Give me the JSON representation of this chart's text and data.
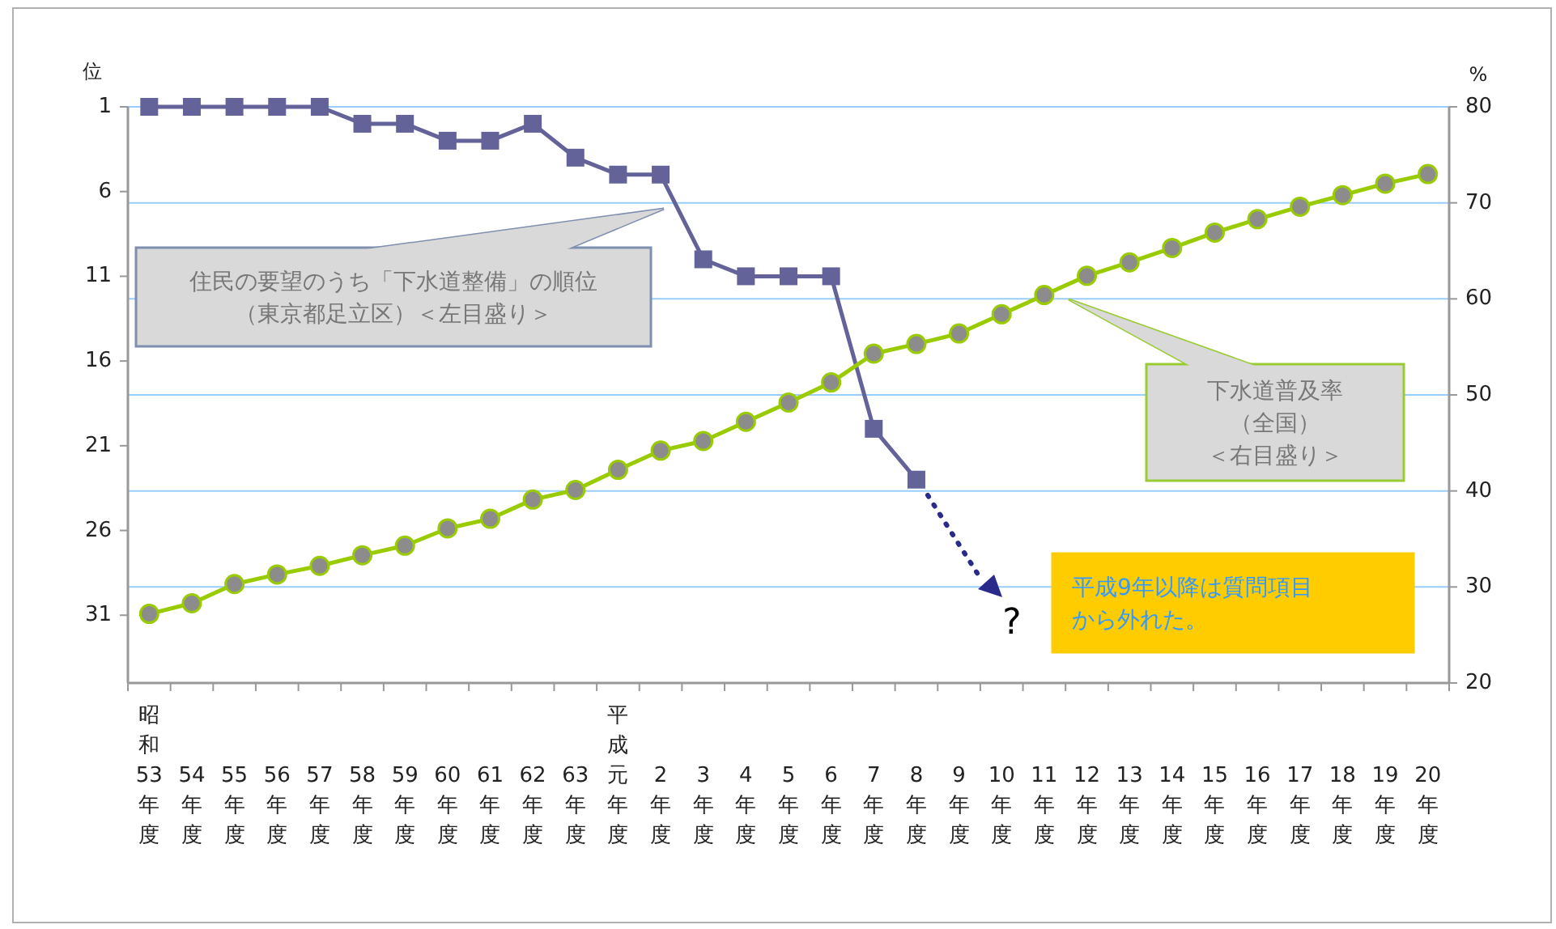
{
  "chart_data": {
    "type": "line",
    "ylabel": "位",
    "y2label": "%",
    "categories": [
      "昭和53年度",
      "54年度",
      "55年度",
      "56年度",
      "57年度",
      "58年度",
      "59年度",
      "60年度",
      "61年度",
      "62年度",
      "63年度",
      "平成元年度",
      "2年度",
      "3年度",
      "4年度",
      "5年度",
      "6年度",
      "7年度",
      "8年度",
      "9年度",
      "10年度",
      "11年度",
      "12年度",
      "13年度",
      "14年度",
      "15年度",
      "16年度",
      "17年度",
      "18年度",
      "19年度",
      "20年度"
    ],
    "series": [
      {
        "color": "#63639a",
        "marker": "square",
        "axis": "y",
        "values": [
          1,
          1,
          1,
          1,
          1,
          2,
          2,
          3,
          3,
          2,
          4,
          5,
          5,
          10,
          11,
          11,
          11,
          20,
          23,
          null,
          null,
          null,
          null,
          null,
          null,
          null,
          null,
          null,
          null,
          null,
          null
        ]
      },
      {
        "color": "#99cc00",
        "marker": "circle",
        "axis": "y2",
        "values": [
          27.2,
          28.3,
          30.3,
          31.3,
          32.2,
          33.3,
          34.3,
          36.1,
          37.1,
          39.1,
          40.1,
          42.2,
          44.2,
          45.2,
          47.2,
          49.2,
          51.3,
          54.3,
          55.3,
          56.4,
          58.4,
          60.4,
          62.4,
          63.8,
          65.3,
          66.9,
          68.3,
          69.6,
          70.8,
          72,
          73
        ]
      }
    ],
    "ylim": [
      35,
      1
    ],
    "yticks": [
      1,
      6,
      11,
      16,
      21,
      26,
      31
    ],
    "y2lim": [
      20,
      80
    ],
    "y2ticks": [
      20,
      30,
      40,
      50,
      60,
      70,
      80
    ],
    "grid": "y",
    "annotations": [
      "住民の要望のうち「下水道整備」の順位（東京都足立区）＜左目盛り＞",
      "下水道普及率（全国）＜右目盛り＞",
      "平成9年以降は質問項目から外れた。",
      "?"
    ]
  }
}
